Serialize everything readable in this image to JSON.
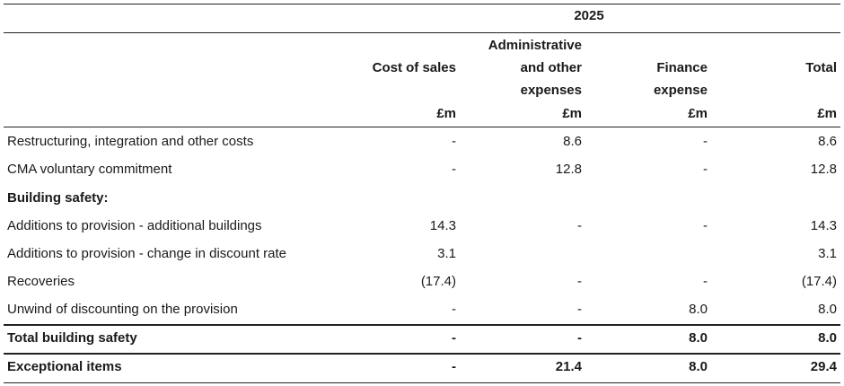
{
  "year": "2025",
  "columns": [
    {
      "lines": [
        "Cost of sales"
      ],
      "unit": "£m"
    },
    {
      "lines": [
        "Administrative",
        "and other",
        "expenses"
      ],
      "unit": "£m"
    },
    {
      "lines": [
        "Finance",
        "expense"
      ],
      "unit": "£m"
    },
    {
      "lines": [
        "Total"
      ],
      "unit": "£m"
    }
  ],
  "rows": [
    {
      "label": "Restructuring, integration and other costs",
      "values": [
        "-",
        "8.6",
        "-",
        "8.6"
      ],
      "bold": false
    },
    {
      "label": "CMA voluntary commitment",
      "values": [
        "-",
        "12.8",
        "-",
        "12.8"
      ],
      "bold": false
    },
    {
      "label": "Building safety:",
      "values": [
        "",
        "",
        "",
        ""
      ],
      "bold": true
    },
    {
      "label": "Additions to provision - additional buildings",
      "values": [
        "14.3",
        "-",
        "-",
        "14.3"
      ],
      "bold": false
    },
    {
      "label": "Additions to provision - change in discount rate",
      "values": [
        "3.1",
        "",
        "",
        "3.1"
      ],
      "bold": false
    },
    {
      "label": "Recoveries",
      "values": [
        "(17.4)",
        "-",
        "-",
        "(17.4)"
      ],
      "bold": false
    },
    {
      "label": "Unwind of discounting on the provision",
      "values": [
        "-",
        "-",
        "8.0",
        "8.0"
      ],
      "bold": false
    },
    {
      "label": "Total building safety",
      "values": [
        "-",
        "-",
        "8.0",
        "8.0"
      ],
      "bold": true
    },
    {
      "label": "Exceptional items",
      "values": [
        "-",
        "21.4",
        "8.0",
        "29.4"
      ],
      "bold": true
    }
  ]
}
